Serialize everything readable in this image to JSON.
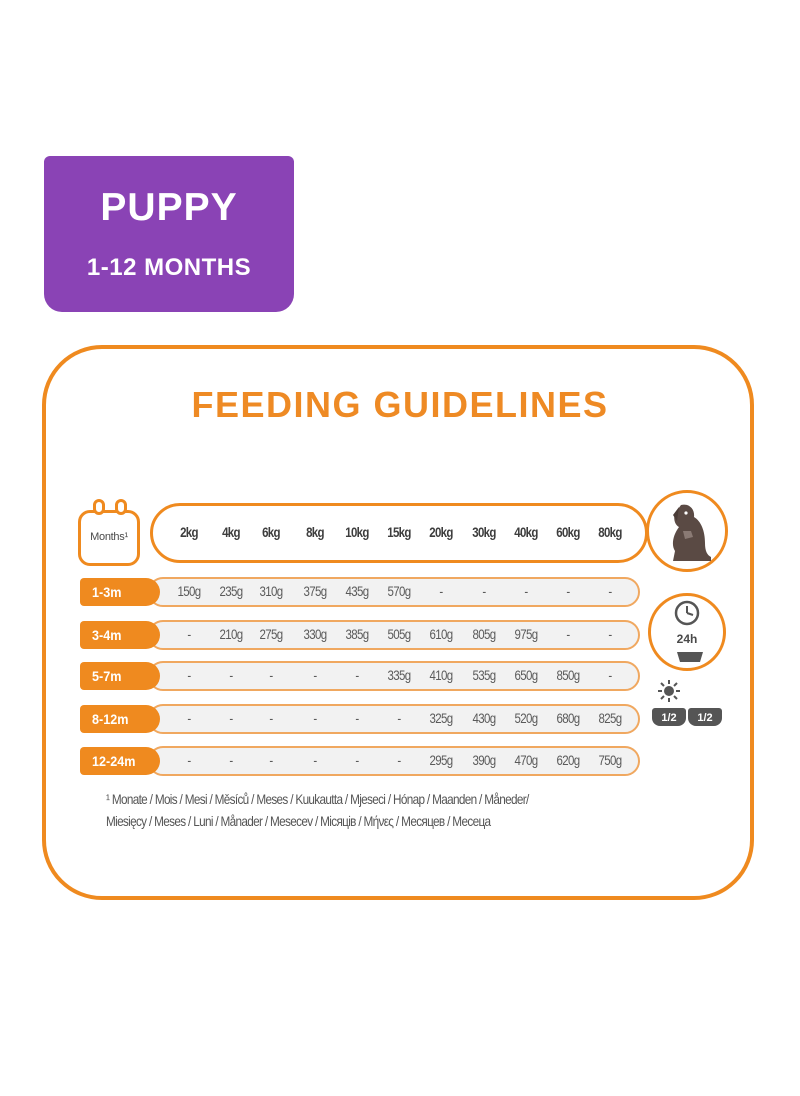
{
  "badge": {
    "title": "PUPPY",
    "subtitle": "1-12 MONTHS"
  },
  "panel": {
    "title": "FEEDING GUIDELINES"
  },
  "calendar": {
    "label": "Months¹",
    "icon": "calendar-icon"
  },
  "weights": [
    "2kg",
    "4kg",
    "6kg",
    "8kg",
    "10kg",
    "15kg",
    "20kg",
    "30kg",
    "40kg",
    "60kg",
    "80kg"
  ],
  "rows": [
    {
      "age": "1-3m",
      "values": [
        "150g",
        "235g",
        "310g",
        "375g",
        "435g",
        "570g",
        "-",
        "-",
        "-",
        "-",
        "-"
      ]
    },
    {
      "age": "3-4m",
      "values": [
        "-",
        "210g",
        "275g",
        "330g",
        "385g",
        "505g",
        "610g",
        "805g",
        "975g",
        "-",
        "-"
      ]
    },
    {
      "age": "5-7m",
      "values": [
        "-",
        "-",
        "-",
        "-",
        "-",
        "335g",
        "410g",
        "535g",
        "650g",
        "850g",
        "-"
      ]
    },
    {
      "age": "8-12m",
      "values": [
        "-",
        "-",
        "-",
        "-",
        "-",
        "-",
        "325g",
        "430g",
        "520g",
        "680g",
        "825g"
      ]
    },
    {
      "age": "12-24m",
      "values": [
        "-",
        "-",
        "-",
        "-",
        "-",
        "-",
        "295g",
        "390g",
        "470g",
        "620g",
        "750g"
      ]
    }
  ],
  "icons": {
    "dog": "dog-icon",
    "clock": "clock-icon",
    "sun": "sun-icon",
    "moon": "moon-icon",
    "bowl": "bowl-icon"
  },
  "daily": {
    "label": "24h"
  },
  "meals": {
    "morning": "1/2",
    "evening": "1/2"
  },
  "footnote": {
    "line1": "¹ Monate / Mois / Mesi / Měsíců / Meses / Kuukautta / Mjeseci / Hónap / Maanden / Måneder/",
    "line2": "Miesięcy / Meses / Luni / Månader / Meseсev / Місяців / Μήνες / Месяцев / Месеца"
  },
  "colors": {
    "accent": "#ef8a1f",
    "badge": "#8a43b5",
    "row_bg": "#f2f2f2",
    "text": "#5a5a5a"
  }
}
